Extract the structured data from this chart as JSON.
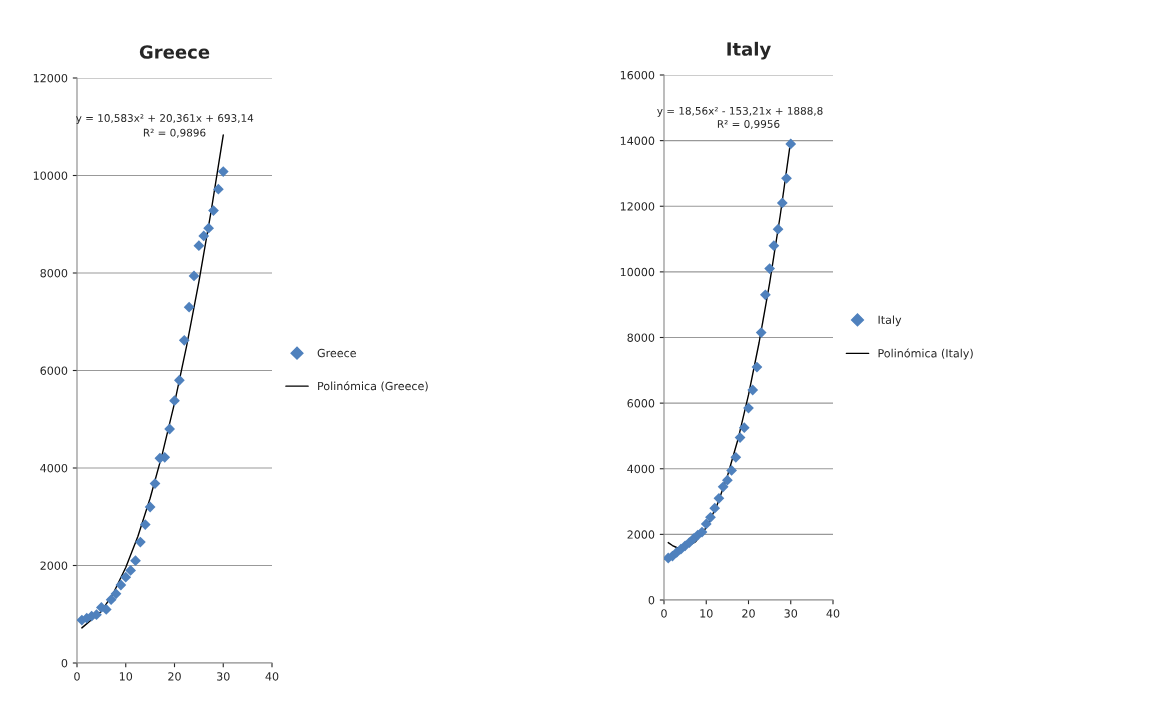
{
  "chart_data": [
    {
      "type": "scatter",
      "title": "Greece",
      "xlim": [
        0,
        40
      ],
      "xticks": [
        0,
        10,
        20,
        30,
        40
      ],
      "ylim": [
        0,
        12000
      ],
      "yticks": [
        0,
        2000,
        4000,
        6000,
        8000,
        10000,
        12000
      ],
      "grid": "y",
      "legend": "right",
      "annotations": [
        "y = 10,583x² + 20,361x + 693,14",
        "R² = 0,9896"
      ],
      "series": [
        {
          "name": "Greece",
          "marker": "diamond",
          "color": "#4f81bd",
          "x": [
            1,
            2,
            3,
            4,
            5,
            6,
            7,
            8,
            9,
            10,
            11,
            12,
            13,
            14,
            15,
            16,
            17,
            18,
            19,
            20,
            21,
            22,
            23,
            24,
            25,
            26,
            27,
            28,
            29,
            30
          ],
          "values": [
            880,
            920,
            960,
            990,
            1140,
            1100,
            1300,
            1420,
            1600,
            1760,
            1900,
            2100,
            2480,
            2840,
            3200,
            3680,
            4200,
            4220,
            4800,
            5380,
            5800,
            6620,
            7300,
            7940,
            8560,
            8760,
            8920,
            9280,
            9720,
            10080
          ]
        },
        {
          "name": "Polinómica (Greece)",
          "type": "line",
          "color": "#000000",
          "x": [
            1,
            5,
            7.5,
            10,
            12.5,
            15,
            17.5,
            20,
            22.5,
            25,
            27.5,
            30
          ],
          "values": [
            720,
            1060,
            1440,
            1960,
            2600,
            3380,
            4290,
            5330,
            6510,
            7820,
            9260,
            10830
          ]
        }
      ]
    },
    {
      "type": "scatter",
      "title": "Italy",
      "xlim": [
        0,
        40
      ],
      "xticks": [
        0,
        10,
        20,
        30,
        40
      ],
      "ylim": [
        0,
        16000
      ],
      "yticks": [
        0,
        2000,
        4000,
        6000,
        8000,
        10000,
        12000,
        14000,
        16000
      ],
      "grid": "y",
      "legend": "right",
      "annotations": [
        "y = 18,56x² - 153,21x + 1888,8",
        "R² = 0,9956"
      ],
      "series": [
        {
          "name": "Italy",
          "marker": "diamond",
          "color": "#4f81bd",
          "x": [
            1,
            2,
            3,
            4,
            5,
            6,
            7,
            8,
            9,
            10,
            11,
            12,
            13,
            14,
            15,
            16,
            17,
            18,
            19,
            20,
            21,
            22,
            23,
            24,
            25,
            26,
            27,
            28,
            29,
            30
          ],
          "values": [
            1280,
            1340,
            1450,
            1550,
            1650,
            1750,
            1870,
            1980,
            2070,
            2320,
            2520,
            2800,
            3100,
            3450,
            3650,
            3950,
            4350,
            4950,
            5250,
            5850,
            6400,
            7100,
            8150,
            9300,
            10100,
            10800,
            11300,
            12100,
            12850,
            13900
          ]
        },
        {
          "name": "Polinómica (Italy)",
          "type": "line",
          "color": "#000000",
          "x": [
            1,
            2,
            3,
            4,
            5,
            7.5,
            10,
            12.5,
            15,
            17.5,
            20,
            22.5,
            25,
            27.5,
            30
          ],
          "values": [
            1750,
            1660,
            1600,
            1570,
            1590,
            1780,
            2210,
            2870,
            3770,
            4890,
            6250,
            7840,
            9660,
            11710,
            14010
          ]
        }
      ]
    }
  ]
}
